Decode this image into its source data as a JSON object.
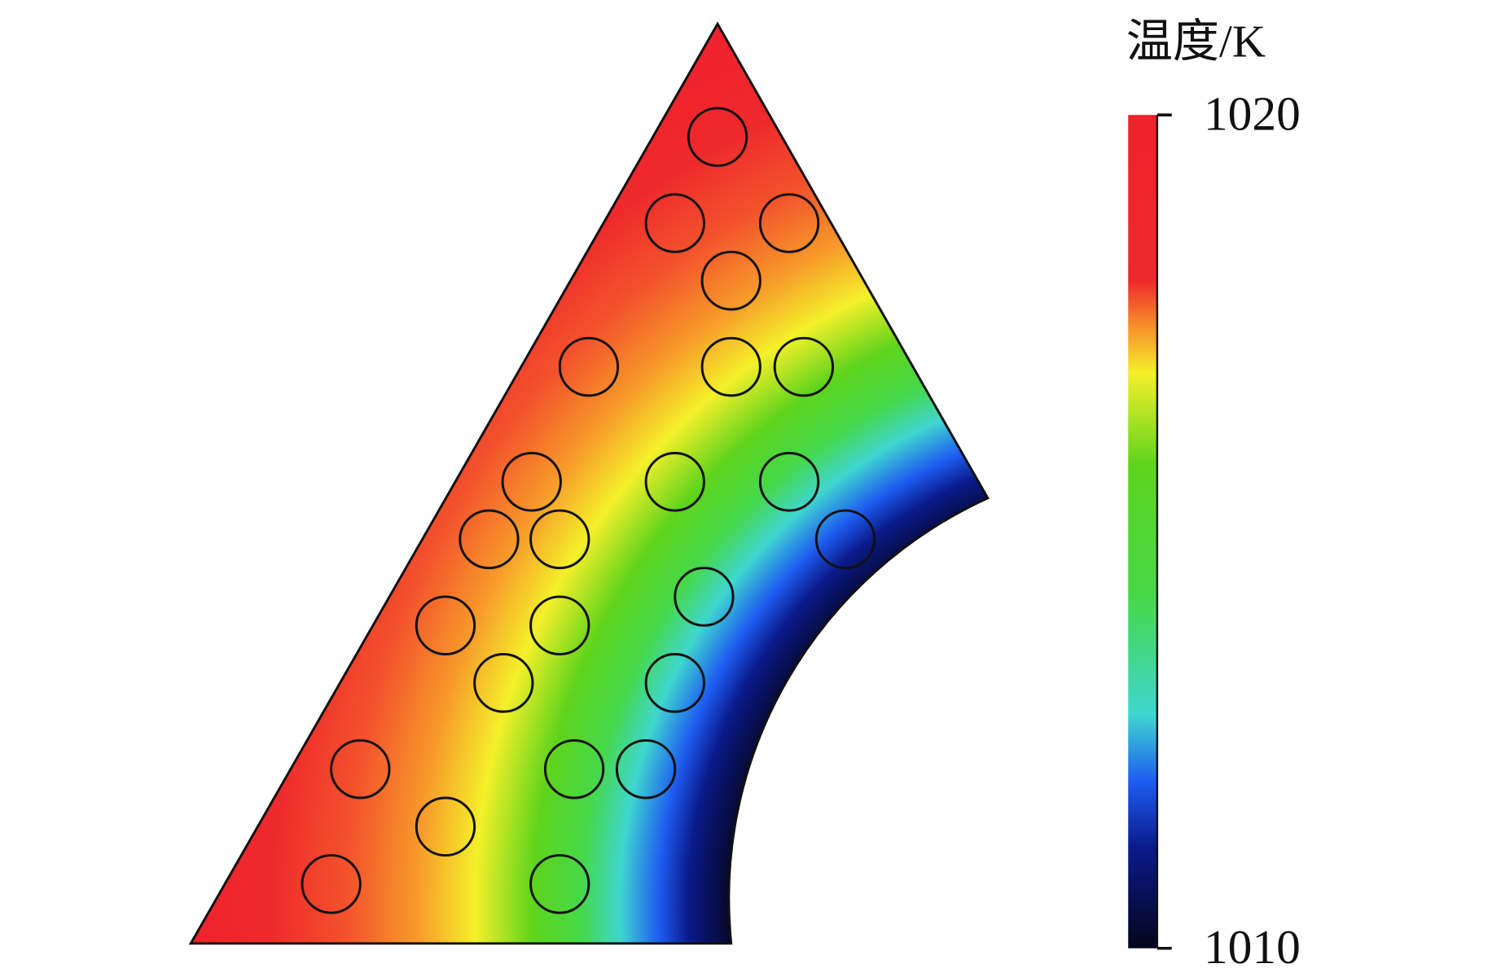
{
  "chart_data": {
    "type": "contour",
    "colorbar": {
      "title": "温度/K",
      "lim": [
        1010,
        1020
      ],
      "ticks": [
        1010,
        1020
      ]
    }
  }
}
